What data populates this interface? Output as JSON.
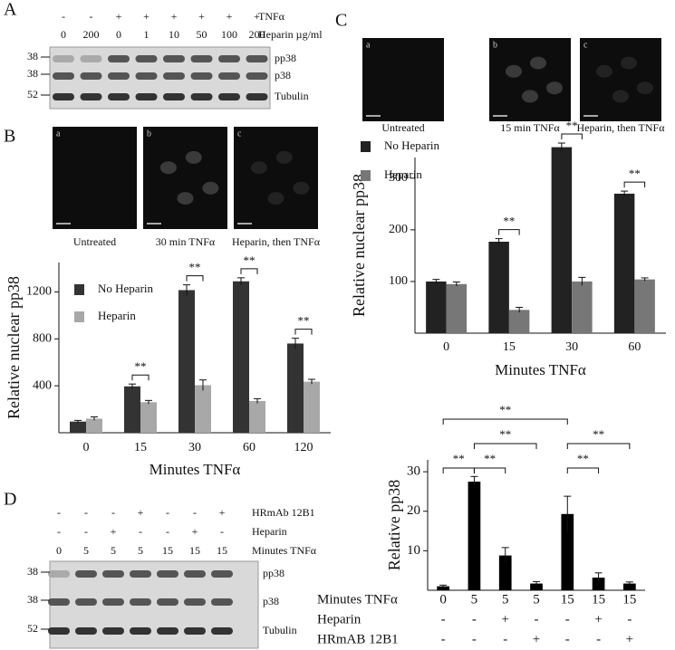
{
  "panel_labels": [
    "A",
    "B",
    "C",
    "D"
  ],
  "blot_a": {
    "conditions": [
      {
        "label": "TNFα",
        "values": [
          "-",
          "-",
          "+",
          "+",
          "+",
          "+",
          "+",
          "+"
        ]
      },
      {
        "label": "Heparin µg/ml",
        "values": [
          "0",
          "200",
          "0",
          "1",
          "10",
          "50",
          "100",
          "200"
        ]
      }
    ],
    "bands": [
      {
        "mw": "38",
        "label": "pp38"
      },
      {
        "mw": "38",
        "label": "p38"
      },
      {
        "mw": "52",
        "label": "Tubulin"
      }
    ]
  },
  "images_b": [
    {
      "letter": "a",
      "caption": "Untreated"
    },
    {
      "letter": "b",
      "caption": "30 min TNFα"
    },
    {
      "letter": "c",
      "caption": "Heparin, then TNFα"
    }
  ],
  "images_c": [
    {
      "letter": "a",
      "caption": "Untreated"
    },
    {
      "letter": "b",
      "caption": "15 min TNFα"
    },
    {
      "letter": "c",
      "caption": "Heparin, then TNFα"
    }
  ],
  "blot_d": {
    "conditions": [
      {
        "label": "HRmAb 12B1",
        "values": [
          "-",
          "-",
          "-",
          "+",
          "-",
          "-",
          "+"
        ]
      },
      {
        "label": "Heparin",
        "values": [
          "-",
          "-",
          "+",
          "-",
          "-",
          "+",
          "-"
        ]
      },
      {
        "label": "Minutes TNFα",
        "values": [
          "0",
          "5",
          "5",
          "5",
          "15",
          "15",
          "15"
        ]
      }
    ],
    "bands": [
      {
        "mw": "38",
        "label": "pp38"
      },
      {
        "mw": "38",
        "label": "p38"
      },
      {
        "mw": "52",
        "label": "Tubulin"
      }
    ]
  },
  "chart_data": [
    {
      "type": "bar",
      "xlabel": "Minutes TNFα",
      "ylabel": "Relative nuclear pp38",
      "categories": [
        "0",
        "15",
        "30",
        "60",
        "120"
      ],
      "series": [
        {
          "name": "No Heparin",
          "color": "#333333",
          "values": [
            95,
            395,
            1215,
            1290,
            760
          ],
          "errors": [
            10,
            20,
            45,
            30,
            45
          ]
        },
        {
          "name": "Heparin",
          "color": "#a8a8a8",
          "values": [
            120,
            260,
            405,
            270,
            435
          ],
          "errors": [
            15,
            15,
            45,
            20,
            20
          ]
        }
      ],
      "significance": [
        null,
        "**",
        "**",
        "**",
        "**"
      ],
      "ylim": [
        0,
        1450
      ],
      "yticks": [
        400,
        800,
        1200
      ],
      "legend": "upper left"
    },
    {
      "type": "bar",
      "xlabel": "Minutes TNFα",
      "ylabel": "Relative nuclear  pp38",
      "categories": [
        "0",
        "15",
        "30",
        "60"
      ],
      "series": [
        {
          "name": "No Heparin",
          "color": "#222222",
          "values": [
            100,
            177,
            360,
            270
          ],
          "errors": [
            4,
            6,
            8,
            5
          ]
        },
        {
          "name": "Heparin",
          "color": "#777777",
          "values": [
            95,
            45,
            100,
            104
          ],
          "errors": [
            4,
            5,
            8,
            3
          ]
        }
      ],
      "significance": [
        null,
        "**",
        "**",
        "**"
      ],
      "ylim": [
        0,
        340
      ],
      "yticks": [
        100,
        200,
        300
      ],
      "legend": "upper left"
    },
    {
      "type": "bar",
      "xlabel": "Minutes TNFα",
      "ylabel": "Relative pp38",
      "categories": [
        "0",
        "5",
        "5",
        "5",
        "15",
        "15",
        "15"
      ],
      "rows": [
        {
          "label": "Heparin",
          "values": [
            "-",
            "-",
            "+",
            "-",
            "-",
            "+",
            "-"
          ]
        },
        {
          "label": "HRmAB 12B1",
          "values": [
            "-",
            "-",
            "-",
            "+",
            "-",
            "-",
            "+"
          ]
        }
      ],
      "series": [
        {
          "color": "#000000",
          "values": [
            1,
            27.5,
            8.8,
            1.7,
            19.3,
            3.2,
            1.7
          ],
          "errors": [
            0.3,
            1.3,
            2,
            0.5,
            4.5,
            1.2,
            0.4
          ]
        }
      ],
      "comparisons": [
        {
          "from": 0,
          "to": 1,
          "label": "**"
        },
        {
          "from": 1,
          "to": 2,
          "label": "**"
        },
        {
          "from": 1,
          "to": 3,
          "label": "**"
        },
        {
          "from": 0,
          "to": 4,
          "label": "**"
        },
        {
          "from": 4,
          "to": 5,
          "label": "**"
        },
        {
          "from": 4,
          "to": 6,
          "label": "**"
        }
      ],
      "ylim": [
        0,
        33
      ],
      "yticks": [
        10,
        20,
        30
      ]
    }
  ]
}
